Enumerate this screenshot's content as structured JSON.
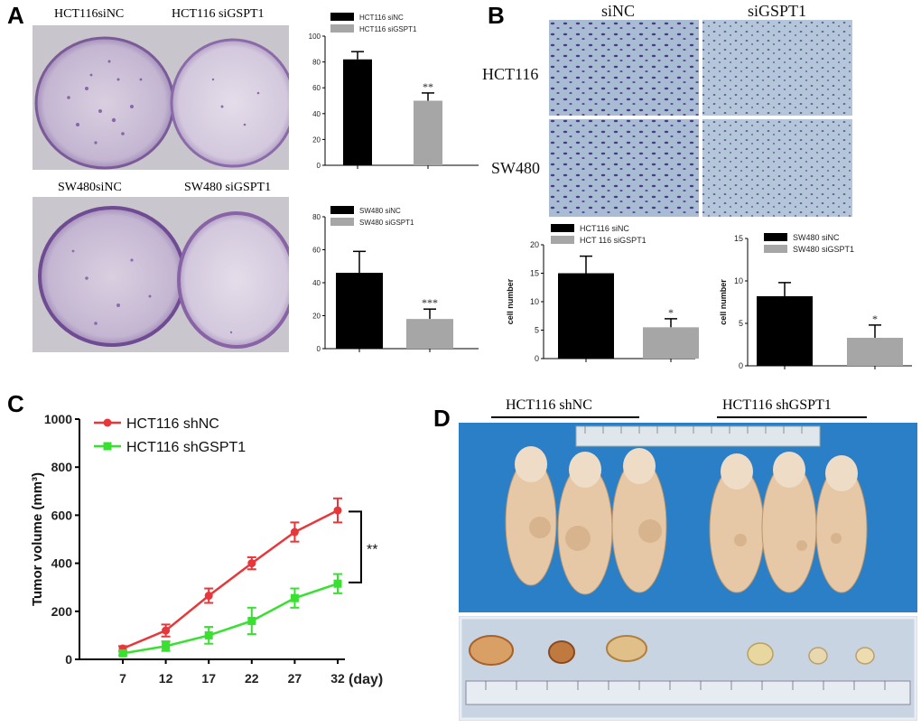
{
  "panels": {
    "a": "A",
    "b": "B",
    "c": "C",
    "d": "D"
  },
  "panel_a": {
    "top_labels": [
      "HCT116siNC",
      "HCT116 siGSPT1"
    ],
    "bottom_labels": [
      "SW480siNC",
      "SW480 siGSPT1"
    ]
  },
  "panel_b": {
    "col_labels": [
      "siNC",
      "siGSPT1"
    ],
    "row_labels": [
      "HCT116",
      "SW480"
    ]
  },
  "panel_d": {
    "group_labels": [
      "HCT116 shNC",
      "HCT116 shGSPT1"
    ]
  },
  "colors": {
    "black_bar": "#000000",
    "gray_bar": "#a6a6a6",
    "red": "#e8373a",
    "green": "#38e030"
  },
  "chart_data": [
    {
      "id": "a-top",
      "type": "bar",
      "categories": [
        "HCT116 siNC",
        "HCT116 siGSPT1"
      ],
      "legend": [
        "HCT116 siNC",
        "HCT116 siGSPT1"
      ],
      "values": [
        82,
        50
      ],
      "errors": [
        6,
        6
      ],
      "significance": [
        "",
        "**"
      ],
      "ylim": [
        0,
        100
      ],
      "yticks": [
        "0",
        "20",
        "40",
        "60",
        "80",
        "100"
      ]
    },
    {
      "id": "a-bottom",
      "type": "bar",
      "categories": [
        "SW480 siNC",
        "SW480 siGSPT1"
      ],
      "legend": [
        "SW480 siNC",
        "SW480 siGSPT1"
      ],
      "values": [
        46,
        18
      ],
      "errors": [
        13,
        6
      ],
      "significance": [
        "",
        "***"
      ],
      "ylim": [
        0,
        80
      ],
      "yticks": [
        "0",
        "20",
        "40",
        "60",
        "80"
      ]
    },
    {
      "id": "b-left",
      "type": "bar",
      "categories": [
        "HCT116 siNC",
        "HCT 116 siGSPT1"
      ],
      "legend": [
        "HCT116  siNC",
        "HCT 116  siGSPT1"
      ],
      "values": [
        15,
        5.5
      ],
      "errors": [
        3,
        1.5
      ],
      "significance": [
        "",
        "*"
      ],
      "ylim": [
        0,
        20
      ],
      "yticks": [
        "0",
        "5",
        "10",
        "15",
        "20"
      ],
      "ylabel": "cell number"
    },
    {
      "id": "b-right",
      "type": "bar",
      "categories": [
        "SW480 siNC",
        "SW480 siGSPT1"
      ],
      "legend": [
        "SW480 siNC",
        "SW480 siGSPT1"
      ],
      "values": [
        8.2,
        3.3
      ],
      "errors": [
        1.6,
        1.5
      ],
      "significance": [
        "",
        "*"
      ],
      "ylim": [
        0,
        15
      ],
      "yticks": [
        "0",
        "5",
        "10",
        "15"
      ],
      "ylabel": "cell number"
    },
    {
      "id": "c",
      "type": "line",
      "x": [
        7,
        12,
        17,
        22,
        27,
        32
      ],
      "xticks": [
        "7",
        "12",
        "17",
        "22",
        "27",
        "32"
      ],
      "xunit": "(day)",
      "ylabel": "Tumor volume (mm³)",
      "ylim": [
        0,
        1000
      ],
      "yticks": [
        "0",
        "200",
        "400",
        "600",
        "800",
        "1000"
      ],
      "significance": "**",
      "series": [
        {
          "name": "HCT116 shNC",
          "values": [
            45,
            120,
            265,
            400,
            530,
            620
          ],
          "errors": [
            10,
            25,
            30,
            25,
            40,
            50
          ]
        },
        {
          "name": "HCT116 shGSPT1",
          "values": [
            25,
            55,
            100,
            160,
            255,
            315
          ],
          "errors": [
            8,
            20,
            35,
            55,
            40,
            40
          ]
        }
      ]
    }
  ]
}
